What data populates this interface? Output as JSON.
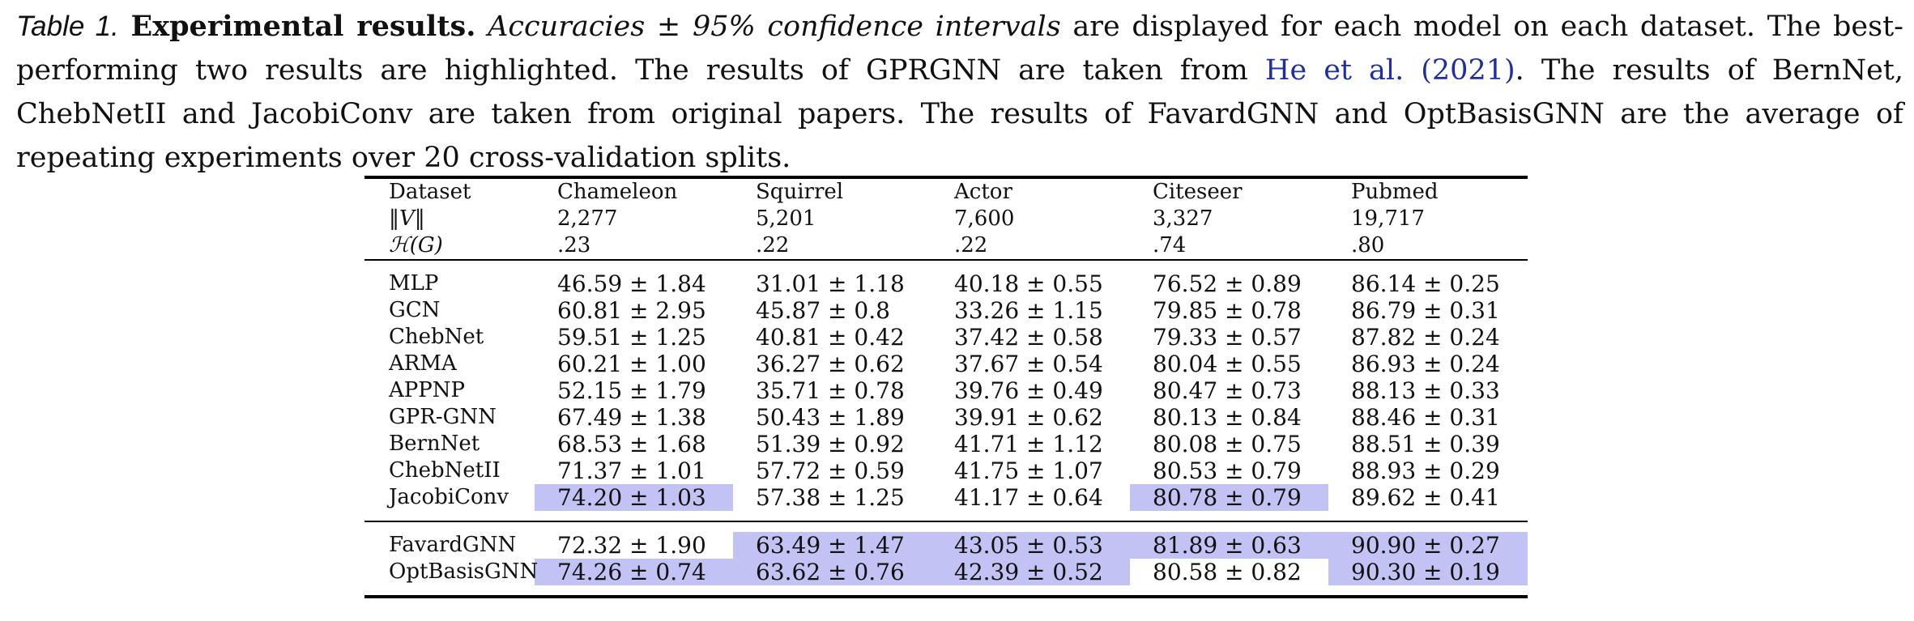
{
  "caption": {
    "label": "Table 1.",
    "title": "Experimental results.",
    "part1": "Accuracies ± 95% confidence intervals",
    "part2": " are displayed for each model on each dataset. The best-performing two results are highlighted. The results of GPRGNN are taken from ",
    "citation": "He et al. (2021)",
    "part3": ". The results of BernNet, ChebNetII and JacobiConv are taken from original papers. The results of FavardGNN and OptBasisGNN are the average of repeating experiments over 20 cross-validation splits."
  },
  "table": {
    "header_rows": [
      [
        "Dataset",
        "Chameleon",
        "Squirrel",
        "Actor",
        "Citeseer",
        "Pubmed"
      ],
      [
        "‖V‖",
        "2,277",
        "5,201",
        "7,600",
        "3,327",
        "19,717"
      ],
      [
        "ℋ(G)",
        ".23",
        ".22",
        ".22",
        ".74",
        ".80"
      ]
    ],
    "baseline_rows": [
      {
        "model": "MLP",
        "cells": [
          "46.59 ± 1.84",
          "31.01 ± 1.18",
          "40.18 ± 0.55",
          "76.52 ± 0.89",
          "86.14 ± 0.25"
        ],
        "highlight": [
          false,
          false,
          false,
          false,
          false
        ]
      },
      {
        "model": "GCN",
        "cells": [
          "60.81 ± 2.95",
          "45.87 ± 0.8",
          "33.26 ± 1.15",
          "79.85 ± 0.78",
          "86.79 ± 0.31"
        ],
        "highlight": [
          false,
          false,
          false,
          false,
          false
        ]
      },
      {
        "model": "ChebNet",
        "cells": [
          "59.51 ± 1.25",
          "40.81 ± 0.42",
          "37.42 ± 0.58",
          "79.33 ± 0.57",
          "87.82 ± 0.24"
        ],
        "highlight": [
          false,
          false,
          false,
          false,
          false
        ]
      },
      {
        "model": "ARMA",
        "cells": [
          "60.21 ± 1.00",
          "36.27 ± 0.62",
          "37.67 ± 0.54",
          "80.04 ± 0.55",
          "86.93 ± 0.24"
        ],
        "highlight": [
          false,
          false,
          false,
          false,
          false
        ]
      },
      {
        "model": "APPNP",
        "cells": [
          "52.15 ± 1.79",
          "35.71 ± 0.78",
          "39.76 ± 0.49",
          "80.47 ± 0.73",
          "88.13 ± 0.33"
        ],
        "highlight": [
          false,
          false,
          false,
          false,
          false
        ]
      },
      {
        "model": "GPR-GNN",
        "cells": [
          "67.49 ± 1.38",
          "50.43 ± 1.89",
          "39.91 ± 0.62",
          "80.13 ± 0.84",
          "88.46 ± 0.31"
        ],
        "highlight": [
          false,
          false,
          false,
          false,
          false
        ]
      },
      {
        "model": "BernNet",
        "cells": [
          "68.53 ± 1.68",
          "51.39 ± 0.92",
          "41.71 ± 1.12",
          "80.08 ± 0.75",
          "88.51 ± 0.39"
        ],
        "highlight": [
          false,
          false,
          false,
          false,
          false
        ]
      },
      {
        "model": "ChebNetII",
        "cells": [
          "71.37 ± 1.01",
          "57.72 ± 0.59",
          "41.75 ± 1.07",
          "80.53 ± 0.79",
          "88.93 ± 0.29"
        ],
        "highlight": [
          false,
          false,
          false,
          false,
          false
        ]
      },
      {
        "model": "JacobiConv",
        "cells": [
          "74.20 ± 1.03",
          "57.38 ± 1.25",
          "41.17 ± 0.64",
          "80.78 ± 0.79",
          "89.62 ± 0.41"
        ],
        "highlight": [
          true,
          false,
          false,
          true,
          false
        ]
      }
    ],
    "ours_rows": [
      {
        "model": "FavardGNN",
        "cells": [
          "72.32 ± 1.90",
          "63.49 ± 1.47",
          "43.05 ± 0.53",
          "81.89 ± 0.63",
          "90.90 ± 0.27"
        ],
        "highlight": [
          false,
          true,
          true,
          true,
          true
        ]
      },
      {
        "model": "OptBasisGNN",
        "cells": [
          "74.26 ± 0.74",
          "63.62 ± 0.76",
          "42.39 ± 0.52",
          "80.58 ± 0.82",
          "90.30 ± 0.19"
        ],
        "highlight": [
          true,
          true,
          true,
          false,
          true
        ]
      }
    ],
    "highlight_color": "#c2c2f5"
  }
}
